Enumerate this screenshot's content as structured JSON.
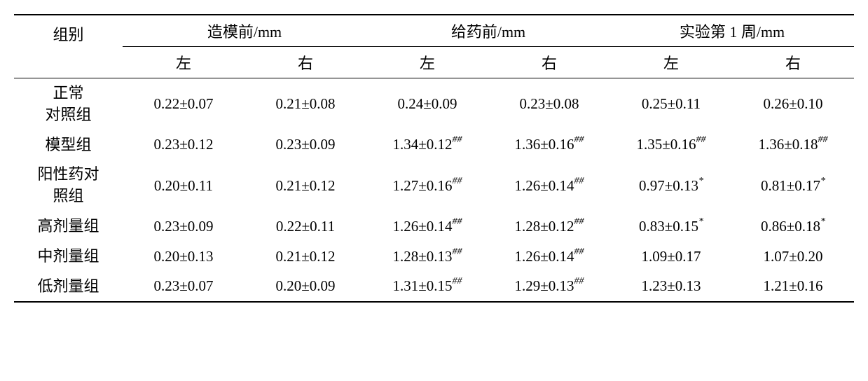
{
  "table": {
    "header": {
      "group_label": "组别",
      "periods": [
        {
          "label": "造模前/mm",
          "left": "左",
          "right": "右"
        },
        {
          "label": "给药前/mm",
          "left": "左",
          "right": "右"
        },
        {
          "label": "实验第 1 周/mm",
          "left": "左",
          "right": "右"
        }
      ]
    },
    "rows": [
      {
        "group": "正常\n对照组",
        "cells": [
          {
            "value": "0.22±0.07",
            "sup": ""
          },
          {
            "value": "0.21±0.08",
            "sup": ""
          },
          {
            "value": "0.24±0.09",
            "sup": ""
          },
          {
            "value": "0.23±0.08",
            "sup": ""
          },
          {
            "value": "0.25±0.11",
            "sup": ""
          },
          {
            "value": "0.26±0.10",
            "sup": ""
          }
        ]
      },
      {
        "group": "模型组",
        "cells": [
          {
            "value": "0.23±0.12",
            "sup": ""
          },
          {
            "value": "0.23±0.09",
            "sup": ""
          },
          {
            "value": "1.34±0.12",
            "sup": "##"
          },
          {
            "value": "1.36±0.16",
            "sup": "##"
          },
          {
            "value": "1.35±0.16",
            "sup": "##"
          },
          {
            "value": "1.36±0.18",
            "sup": "##"
          }
        ]
      },
      {
        "group": "阳性药对\n照组",
        "cells": [
          {
            "value": "0.20±0.11",
            "sup": ""
          },
          {
            "value": "0.21±0.12",
            "sup": ""
          },
          {
            "value": "1.27±0.16",
            "sup": "##"
          },
          {
            "value": "1.26±0.14",
            "sup": "##"
          },
          {
            "value": "0.97±0.13",
            "sup": "*"
          },
          {
            "value": "0.81±0.17",
            "sup": "*"
          }
        ]
      },
      {
        "group": "高剂量组",
        "cells": [
          {
            "value": "0.23±0.09",
            "sup": ""
          },
          {
            "value": "0.22±0.11",
            "sup": ""
          },
          {
            "value": "1.26±0.14",
            "sup": "##"
          },
          {
            "value": "1.28±0.12",
            "sup": "##"
          },
          {
            "value": "0.83±0.15",
            "sup": "*"
          },
          {
            "value": "0.86±0.18",
            "sup": "*"
          }
        ]
      },
      {
        "group": "中剂量组",
        "cells": [
          {
            "value": "0.20±0.13",
            "sup": ""
          },
          {
            "value": "0.21±0.12",
            "sup": ""
          },
          {
            "value": "1.28±0.13",
            "sup": "##"
          },
          {
            "value": "1.26±0.14",
            "sup": "##"
          },
          {
            "value": "1.09±0.17",
            "sup": ""
          },
          {
            "value": "1.07±0.20",
            "sup": ""
          }
        ]
      },
      {
        "group": "低剂量组",
        "cells": [
          {
            "value": "0.23±0.07",
            "sup": ""
          },
          {
            "value": "0.20±0.09",
            "sup": ""
          },
          {
            "value": "1.31±0.15",
            "sup": "##"
          },
          {
            "value": "1.29±0.13",
            "sup": "##"
          },
          {
            "value": "1.23±0.13",
            "sup": ""
          },
          {
            "value": "1.21±0.16",
            "sup": ""
          }
        ]
      }
    ]
  }
}
